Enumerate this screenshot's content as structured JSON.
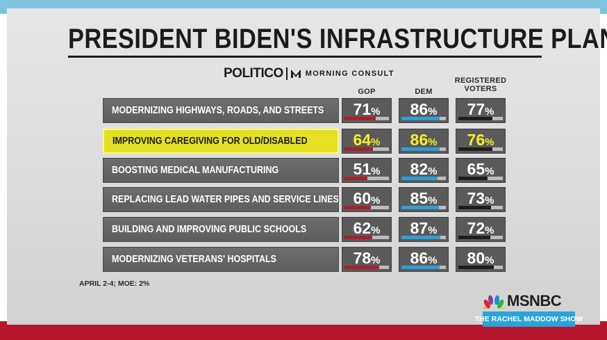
{
  "headline": {
    "title": "PRESIDENT BIDEN'S INFRASTRUCTURE PLAN"
  },
  "sources": {
    "politico": "POLITICO",
    "morning_consult": "MORNING CONSULT"
  },
  "columns": [
    {
      "label": "GOP",
      "color": "#a8202f"
    },
    {
      "label": "DEM",
      "color": "#2d9fd6"
    },
    {
      "label": "REGISTERED VOTERS",
      "color": "#1e1e1e"
    }
  ],
  "rows": [
    {
      "label": "MODERNIZING HIGHWAYS, ROADS, AND STREETS",
      "highlighted": false,
      "values": [
        {
          "num": "71",
          "pct": "%",
          "level": 71
        },
        {
          "num": "86",
          "pct": "%",
          "level": 86
        },
        {
          "num": "77",
          "pct": "%",
          "level": 77
        }
      ]
    },
    {
      "label": "IMPROVING CAREGIVING FOR OLD/DISABLED",
      "highlighted": true,
      "values": [
        {
          "num": "64",
          "pct": "%",
          "level": 64
        },
        {
          "num": "86",
          "pct": "%",
          "level": 86
        },
        {
          "num": "76",
          "pct": "%",
          "level": 76
        }
      ]
    },
    {
      "label": "BOOSTING MEDICAL MANUFACTURING",
      "highlighted": false,
      "values": [
        {
          "num": "51",
          "pct": "%",
          "level": 51
        },
        {
          "num": "82",
          "pct": "%",
          "level": 82
        },
        {
          "num": "65",
          "pct": "%",
          "level": 65
        }
      ]
    },
    {
      "label": "REPLACING LEAD WATER PIPES AND SERVICE LINES",
      "highlighted": false,
      "values": [
        {
          "num": "60",
          "pct": "%",
          "level": 60
        },
        {
          "num": "85",
          "pct": "%",
          "level": 85
        },
        {
          "num": "73",
          "pct": "%",
          "level": 73
        }
      ]
    },
    {
      "label": "BUILDING AND IMPROVING PUBLIC SCHOOLS",
      "highlighted": false,
      "values": [
        {
          "num": "62",
          "pct": "%",
          "level": 62
        },
        {
          "num": "87",
          "pct": "%",
          "level": 87
        },
        {
          "num": "72",
          "pct": "%",
          "level": 72
        }
      ]
    },
    {
      "label": "MODERNIZING VETERANS' HOSPITALS",
      "highlighted": false,
      "values": [
        {
          "num": "78",
          "pct": "%",
          "level": 78
        },
        {
          "num": "86",
          "pct": "%",
          "level": 86
        },
        {
          "num": "80",
          "pct": "%",
          "level": 80
        }
      ]
    }
  ],
  "footnote": "APRIL 2-4; MOE: 2%",
  "branding": {
    "network": "MSNBC",
    "show": "THE RACHEL MADDOW SHOW"
  },
  "colors": {
    "highlight": "#e5e022",
    "highlight_text": "#f4ef2b",
    "top_band": "#7fc3df",
    "bottom_band": "#b5162c"
  }
}
